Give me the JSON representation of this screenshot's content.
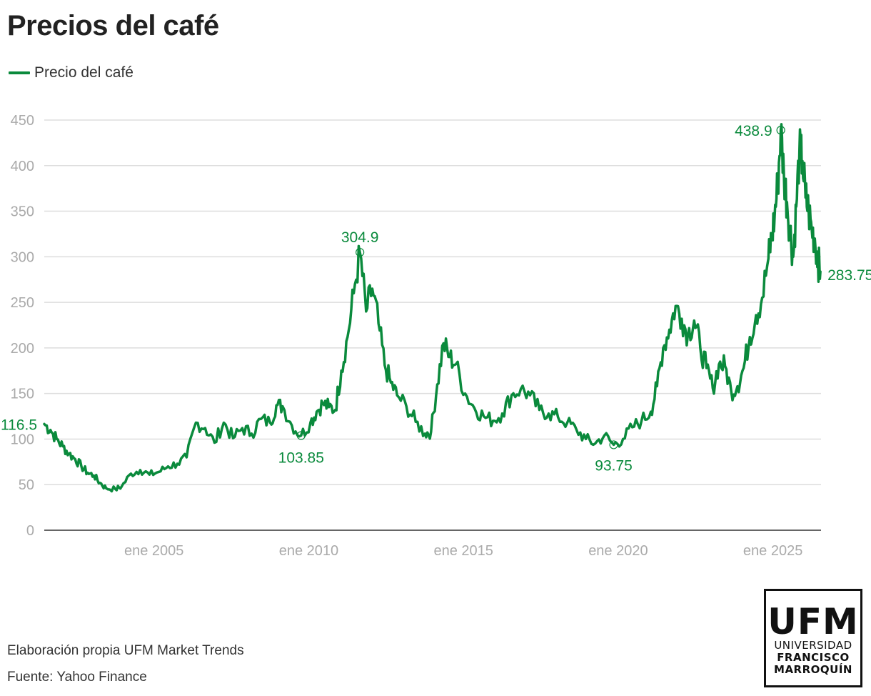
{
  "title": "Precios del café",
  "source_line1": "Elaboración propia UFM Market Trends",
  "source_line2": "Fuente: Yahoo Finance",
  "logo": {
    "line1": "UFM",
    "line2": "UNIVERSIDAD",
    "line3": "FRANCISCO",
    "line4": "MARROQUÍN"
  },
  "colors": {
    "line": "#0a8a3c",
    "grid": "#dddddd",
    "axis": "#333333",
    "ticks": "#aaaaaa"
  },
  "chart_data": {
    "type": "line",
    "title": "Precios del café",
    "xlabel": "",
    "ylabel": "",
    "legend": [
      "Precio del café"
    ],
    "legend_position": "top-left",
    "grid": true,
    "xlim": [
      2001.5,
      2026.6
    ],
    "ylim": [
      0,
      450
    ],
    "y_ticks": [
      0,
      50,
      100,
      150,
      200,
      250,
      300,
      350,
      400,
      450
    ],
    "y_tick_labels": [
      "0",
      "50",
      "100",
      "150",
      "200",
      "250",
      "300",
      "350",
      "400",
      "450"
    ],
    "x_ticks": [
      2005,
      2010,
      2015,
      2020,
      2025
    ],
    "x_tick_labels": [
      "ene 2005",
      "ene 2010",
      "ene 2015",
      "ene 2020",
      "ene 2025"
    ],
    "series": [
      {
        "name": "Precio del café",
        "x": [
          2001.5,
          2001.7,
          2001.9,
          2002.1,
          2002.3,
          2002.5,
          2002.7,
          2002.9,
          2003.1,
          2003.3,
          2003.5,
          2003.8,
          2004.0,
          2004.3,
          2004.6,
          2004.9,
          2005.2,
          2005.5,
          2005.8,
          2006.1,
          2006.4,
          2006.7,
          2007.0,
          2007.3,
          2007.6,
          2007.9,
          2008.2,
          2008.5,
          2008.8,
          2009.0,
          2009.2,
          2009.5,
          2009.8,
          2010.1,
          2010.3,
          2010.5,
          2010.7,
          2010.9,
          2011.1,
          2011.3,
          2011.5,
          2011.7,
          2011.9,
          2012.1,
          2012.3,
          2012.5,
          2012.7,
          2012.9,
          2013.2,
          2013.5,
          2013.8,
          2014.0,
          2014.2,
          2014.4,
          2014.6,
          2014.8,
          2015.1,
          2015.4,
          2015.7,
          2016.0,
          2016.3,
          2016.6,
          2016.9,
          2017.2,
          2017.5,
          2017.8,
          2018.1,
          2018.4,
          2018.7,
          2019.0,
          2019.3,
          2019.6,
          2019.9,
          2020.2,
          2020.5,
          2020.8,
          2021.1,
          2021.3,
          2021.5,
          2021.7,
          2021.9,
          2022.1,
          2022.3,
          2022.5,
          2022.7,
          2022.9,
          2023.1,
          2023.3,
          2023.5,
          2023.7,
          2023.9,
          2024.1,
          2024.3,
          2024.5,
          2024.7,
          2024.9,
          2025.0,
          2025.1,
          2025.2,
          2025.3,
          2025.4,
          2025.5,
          2025.6,
          2025.7,
          2025.8,
          2025.9,
          2026.0,
          2026.1,
          2026.2,
          2026.3,
          2026.4,
          2026.5,
          2026.58
        ],
        "y": [
          116.5,
          110,
          100,
          92,
          84,
          78,
          70,
          63,
          60,
          52,
          46,
          45,
          48,
          62,
          66,
          61,
          64,
          70,
          73,
          80,
          118,
          112,
          96,
          118,
          101,
          112,
          106,
          122,
          118,
          137,
          136,
          115,
          103.85,
          118,
          130,
          139,
          135,
          132,
          175,
          212,
          260,
          304.9,
          240,
          265,
          227,
          181,
          162,
          148,
          136,
          119,
          106,
          108,
          160,
          205,
          190,
          182,
          150,
          134,
          125,
          120,
          128,
          148,
          155,
          148,
          132,
          128,
          124,
          118,
          110,
          100,
          95,
          104,
          93.75,
          100,
          113,
          120,
          130,
          158,
          200,
          220,
          246,
          232,
          215,
          230,
          200,
          178,
          156,
          182,
          180,
          152,
          158,
          178,
          212,
          236,
          255,
          298,
          320,
          344,
          380,
          438.9,
          390,
          360,
          330,
          300,
          355,
          415,
          405,
          365,
          350,
          330,
          320,
          295,
          283.75
        ]
      }
    ],
    "annotations": [
      {
        "label": "116.5",
        "x": 2001.5,
        "y": 116.5,
        "marker": false
      },
      {
        "label": "103.85",
        "x": 2009.8,
        "y": 103.85,
        "marker": true
      },
      {
        "label": "304.9",
        "x": 2011.7,
        "y": 304.9,
        "marker": true
      },
      {
        "label": "93.75",
        "x": 2019.9,
        "y": 93.75,
        "marker": true
      },
      {
        "label": "438.9",
        "x": 2025.3,
        "y": 438.9,
        "marker": true
      },
      {
        "label": "283.75",
        "x": 2026.58,
        "y": 283.75,
        "marker": false
      }
    ]
  }
}
